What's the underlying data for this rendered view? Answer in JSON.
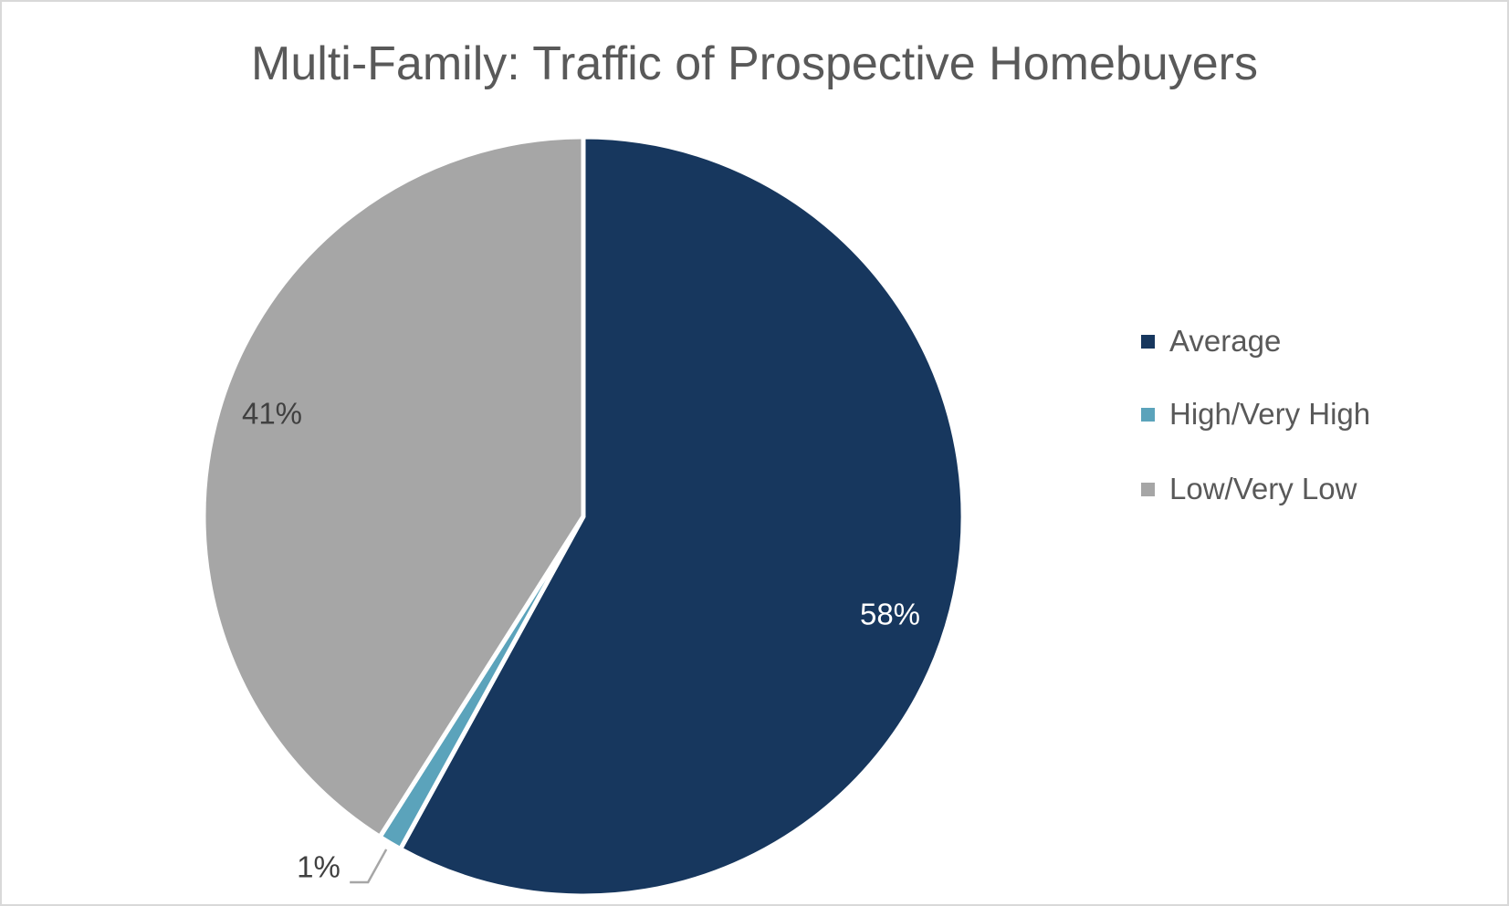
{
  "chart_data": {
    "type": "pie",
    "title": "Multi-Family: Traffic of Prospective Homebuyers",
    "start_angle_deg": 0,
    "direction": "clockwise",
    "slices": [
      {
        "label": "Average",
        "value": 58,
        "data_label": "58%",
        "color": "#17375e",
        "label_color": "#ffffff"
      },
      {
        "label": "High/Very High",
        "value": 1,
        "data_label": "1%",
        "color": "#5ba3bb",
        "label_color": "#404040"
      },
      {
        "label": "Low/Very Low",
        "value": 41,
        "data_label": "41%",
        "color": "#a6a6a6",
        "label_color": "#404040"
      }
    ],
    "legend_position": "right"
  }
}
